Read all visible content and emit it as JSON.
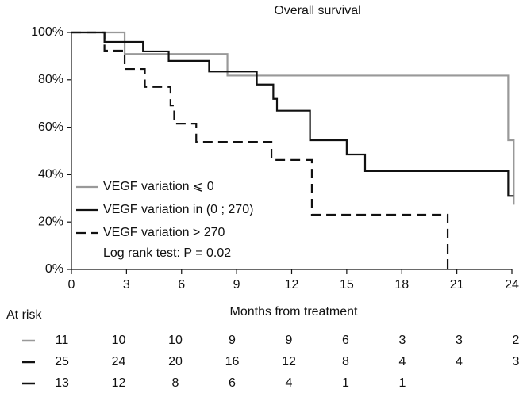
{
  "chart_data": {
    "type": "step",
    "title": "Overall survival",
    "x_label": "Months from treatment",
    "xlim": [
      0,
      24
    ],
    "xticks": [
      0,
      3,
      6,
      9,
      12,
      15,
      18,
      21,
      24
    ],
    "ylim": [
      0,
      100
    ],
    "yticks": [
      {
        "value": 0,
        "label": "0%"
      },
      {
        "value": 20,
        "label": "20%"
      },
      {
        "value": 40,
        "label": "40%"
      },
      {
        "value": 60,
        "label": "60%"
      },
      {
        "value": 80,
        "label": "80%"
      },
      {
        "value": 100,
        "label": "100%"
      }
    ],
    "series": [
      {
        "name": "VEGF variation ⩽ 0",
        "color": "#999999",
        "style": "solid",
        "x": [
          0,
          2.9,
          8.5,
          23.8,
          24.1
        ],
        "values": [
          100,
          90.9,
          81.8,
          54.5,
          27.3
        ]
      },
      {
        "name": "VEGF variation in (0 ; 270)",
        "color": "#111111",
        "style": "solid",
        "x": [
          0,
          1.8,
          3.9,
          5.3,
          7.5,
          10.1,
          11,
          11.2,
          13,
          15,
          16,
          23.8,
          24.1
        ],
        "values": [
          100,
          96,
          92,
          88,
          83.5,
          78,
          72,
          67,
          54.5,
          48.5,
          41.5,
          31,
          31
        ]
      },
      {
        "name": "VEGF variation > 270",
        "color": "#111111",
        "style": "dashed",
        "x": [
          0,
          1.8,
          2.9,
          4,
          5.4,
          5.6,
          6.8,
          10.9,
          13.1,
          20.5
        ],
        "values": [
          100,
          92.3,
          84.6,
          77,
          69.2,
          61.5,
          53.8,
          46.2,
          23.1,
          0
        ]
      }
    ],
    "annotation": "Log rank test: P = 0.02",
    "at_risk": {
      "label": "At risk",
      "rows": [
        [
          11,
          10,
          10,
          9,
          9,
          6,
          3,
          3,
          2
        ],
        [
          25,
          24,
          20,
          16,
          12,
          8,
          4,
          4,
          3
        ],
        [
          13,
          12,
          8,
          6,
          4,
          1,
          1
        ]
      ]
    }
  }
}
